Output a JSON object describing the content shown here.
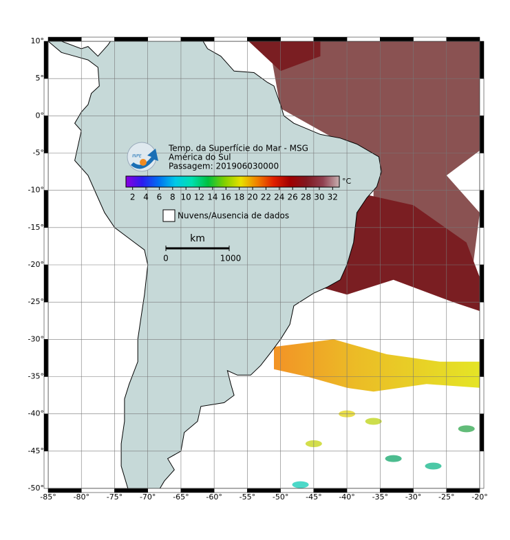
{
  "map": {
    "xlim": [
      -85,
      -20
    ],
    "ylim": [
      -50,
      10
    ],
    "xticks": [
      {
        "value": -85,
        "label": "-85°"
      },
      {
        "value": -80,
        "label": "-80°"
      },
      {
        "value": -75,
        "label": "-75°"
      },
      {
        "value": -70,
        "label": "-70°"
      },
      {
        "value": -65,
        "label": "-65°"
      },
      {
        "value": -60,
        "label": "-60°"
      },
      {
        "value": -55,
        "label": "-55°"
      },
      {
        "value": -50,
        "label": "-50°"
      },
      {
        "value": -45,
        "label": "-45°"
      },
      {
        "value": -40,
        "label": "-40°"
      },
      {
        "value": -35,
        "label": "-35°"
      },
      {
        "value": -30,
        "label": "-30°"
      },
      {
        "value": -25,
        "label": "-25°"
      },
      {
        "value": -20,
        "label": "-20°"
      }
    ],
    "yticks": [
      {
        "value": 10,
        "label": "10°"
      },
      {
        "value": 5,
        "label": "5°"
      },
      {
        "value": 0,
        "label": "0°"
      },
      {
        "value": -5,
        "label": "-5°"
      },
      {
        "value": -10,
        "label": "-10°"
      },
      {
        "value": -15,
        "label": "-15°"
      },
      {
        "value": -20,
        "label": "-20°"
      },
      {
        "value": -25,
        "label": "-25°"
      },
      {
        "value": -30,
        "label": "-30°"
      },
      {
        "value": -35,
        "label": "-35°"
      },
      {
        "value": -40,
        "label": "-40°"
      },
      {
        "value": -45,
        "label": "-45°"
      },
      {
        "value": -50,
        "label": "-50°"
      }
    ],
    "grid": true,
    "legend": {
      "logo": "INPE",
      "lines": [
        "Temp. da Superfície do Mar - MSG",
        "América do Sul",
        "Passagem: 201906030000"
      ],
      "colorbar": {
        "clim": [
          1,
          33
        ],
        "ticks": [
          2,
          4,
          6,
          8,
          10,
          12,
          14,
          16,
          18,
          20,
          22,
          24,
          26,
          28,
          30,
          32
        ],
        "unit": "°C",
        "colors": [
          "#8a00e0",
          "#2a1cf0",
          "#0070f0",
          "#00c8e8",
          "#00e0b0",
          "#00c040",
          "#80d000",
          "#e8e000",
          "#f08000",
          "#e02000",
          "#a00000",
          "#801820",
          "#904050",
          "#c8b0b0"
        ]
      },
      "missing": "Nuvens/Ausencia de dados",
      "scalebar": {
        "unit": "km",
        "labels": [
          "0",
          "1000"
        ]
      }
    }
  }
}
